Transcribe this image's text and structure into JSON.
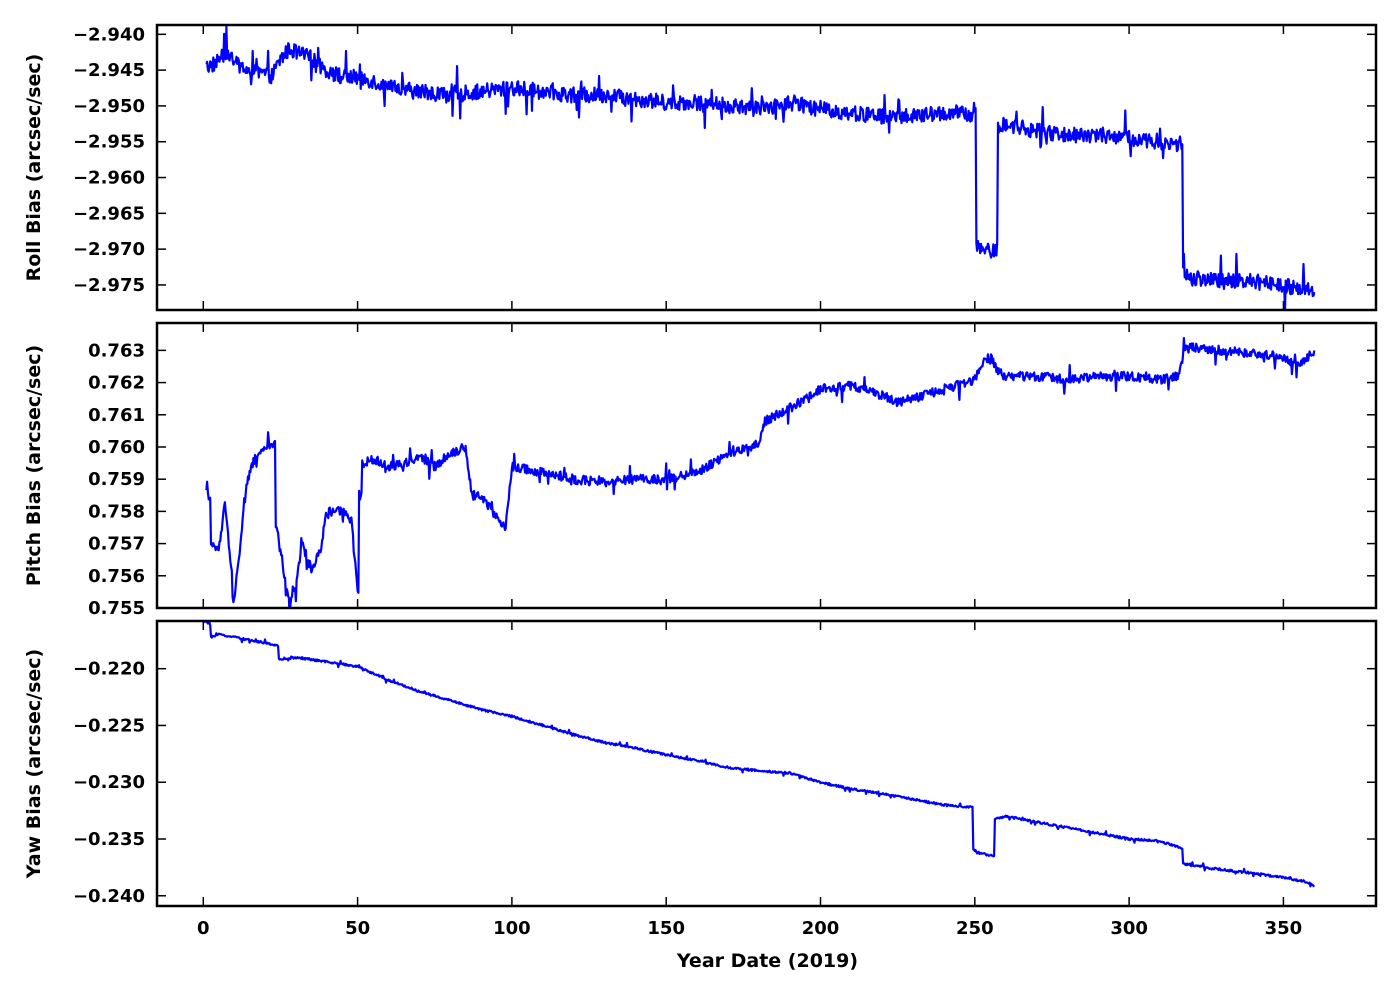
{
  "colors": {
    "series": "#0000ff",
    "frame": "#000000",
    "background": "#ffffff"
  },
  "chart_data": [
    {
      "type": "line",
      "id": "roll",
      "ylabel": "Roll Bias (arcsec/sec)",
      "xlim": [
        -15,
        380
      ],
      "ylim": [
        -2.9785,
        -2.9387
      ],
      "yticks": [
        -2.94,
        -2.945,
        -2.95,
        -2.955,
        -2.96,
        -2.965,
        -2.97,
        -2.975
      ],
      "ytick_labels": [
        "−2.940",
        "−2.945",
        "−2.950",
        "−2.955",
        "−2.960",
        "−2.965",
        "−2.970",
        "−2.975"
      ],
      "xticks": [
        0,
        50,
        100,
        150,
        200,
        250,
        300,
        350
      ],
      "show_xtick_labels": false,
      "grid": false,
      "series": [
        {
          "x": [
            1,
            2,
            4,
            6,
            8,
            10,
            12,
            15,
            18,
            20,
            22,
            25,
            28,
            30,
            33,
            36,
            40,
            45,
            50,
            55,
            60,
            70,
            80,
            90,
            100,
            110,
            120,
            130,
            140,
            150,
            160,
            170,
            180,
            190,
            200,
            210,
            220,
            230,
            240,
            245,
            249,
            250,
            251,
            253,
            255,
            257,
            258,
            260,
            270,
            280,
            290,
            300,
            310,
            316,
            317,
            318,
            320,
            330,
            340,
            350,
            355,
            359,
            360
          ],
          "y": [
            -2.9435,
            -2.9445,
            -2.944,
            -2.943,
            -2.9425,
            -2.944,
            -2.9445,
            -2.945,
            -2.9455,
            -2.9455,
            -2.946,
            -2.9435,
            -2.942,
            -2.9425,
            -2.943,
            -2.9435,
            -2.945,
            -2.946,
            -2.946,
            -2.9465,
            -2.9475,
            -2.948,
            -2.9485,
            -2.948,
            -2.9475,
            -2.948,
            -2.9485,
            -2.9485,
            -2.949,
            -2.9495,
            -2.9495,
            -2.95,
            -2.9505,
            -2.9495,
            -2.9505,
            -2.951,
            -2.9515,
            -2.9515,
            -2.951,
            -2.951,
            -2.9515,
            -2.9505,
            -2.9695,
            -2.97,
            -2.9705,
            -2.97,
            -2.953,
            -2.9525,
            -2.9535,
            -2.954,
            -2.954,
            -2.9545,
            -2.955,
            -2.9555,
            -2.955,
            -2.9735,
            -2.974,
            -2.9745,
            -2.9745,
            -2.975,
            -2.9755,
            -2.9755,
            -2.976
          ],
          "noise": 0.0022
        }
      ]
    },
    {
      "type": "line",
      "id": "pitch",
      "ylabel": "Pitch Bias (arcsec/sec)",
      "xlim": [
        -15,
        380
      ],
      "ylim": [
        0.755,
        0.76385
      ],
      "yticks": [
        0.755,
        0.756,
        0.757,
        0.758,
        0.759,
        0.76,
        0.761,
        0.762,
        0.763
      ],
      "ytick_labels": [
        "0.755",
        "0.756",
        "0.757",
        "0.758",
        "0.759",
        "0.760",
        "0.761",
        "0.762",
        "0.763"
      ],
      "xticks": [
        0,
        50,
        100,
        150,
        200,
        250,
        300,
        350
      ],
      "show_xtick_labels": false,
      "grid": false,
      "series": [
        {
          "x": [
            1,
            2,
            3,
            5,
            7,
            9,
            10,
            12,
            14,
            16,
            18,
            20,
            23,
            24,
            26,
            28,
            30,
            32,
            35,
            38,
            40,
            45,
            48,
            50,
            51,
            52,
            55,
            60,
            65,
            70,
            75,
            80,
            85,
            87,
            90,
            95,
            98,
            100,
            105,
            110,
            120,
            130,
            140,
            150,
            160,
            170,
            180,
            182,
            190,
            200,
            210,
            220,
            225,
            230,
            240,
            248,
            250,
            252,
            255,
            258,
            260,
            270,
            280,
            290,
            300,
            310,
            316,
            318,
            320,
            330,
            340,
            350,
            355,
            360
          ],
          "y": [
            0.7588,
            0.7585,
            0.7569,
            0.7568,
            0.7582,
            0.7563,
            0.7552,
            0.757,
            0.7588,
            0.7595,
            0.7598,
            0.76,
            0.7601,
            0.7575,
            0.7562,
            0.7551,
            0.7557,
            0.757,
            0.7562,
            0.7568,
            0.758,
            0.758,
            0.7577,
            0.7555,
            0.7585,
            0.7595,
            0.7596,
            0.7594,
            0.7595,
            0.7597,
            0.7594,
            0.7598,
            0.76,
            0.7585,
            0.7585,
            0.7578,
            0.7575,
            0.7594,
            0.7593,
            0.7592,
            0.759,
            0.7589,
            0.759,
            0.759,
            0.7592,
            0.7598,
            0.7601,
            0.7608,
            0.7612,
            0.7618,
            0.7619,
            0.7616,
            0.7614,
            0.7615,
            0.7618,
            0.762,
            0.7621,
            0.7626,
            0.7628,
            0.7623,
            0.7622,
            0.7622,
            0.7621,
            0.7622,
            0.7622,
            0.7621,
            0.7622,
            0.763,
            0.7631,
            0.763,
            0.7629,
            0.7628,
            0.7625,
            0.763
          ],
          "noise": 0.00028
        }
      ]
    },
    {
      "type": "line",
      "id": "yaw",
      "ylabel": "Yaw Bias (arcsec/sec)",
      "xlabel": "Year Date (2019)",
      "xlim": [
        -15,
        380
      ],
      "ylim": [
        -0.2409,
        -0.2158
      ],
      "yticks": [
        -0.22,
        -0.225,
        -0.23,
        -0.235,
        -0.24
      ],
      "ytick_labels": [
        "−0.220",
        "−0.225",
        "−0.230",
        "−0.235",
        "−0.240"
      ],
      "xticks": [
        0,
        50,
        100,
        150,
        200,
        250,
        300,
        350
      ],
      "xtick_labels": [
        "0",
        "50",
        "100",
        "150",
        "200",
        "250",
        "300",
        "350"
      ],
      "show_xtick_labels": true,
      "grid": false,
      "series": [
        {
          "x": [
            0,
            2,
            3,
            5,
            10,
            15,
            20,
            24,
            25,
            30,
            35,
            40,
            50,
            60,
            70,
            80,
            90,
            100,
            110,
            120,
            130,
            140,
            150,
            160,
            170,
            180,
            190,
            200,
            210,
            220,
            230,
            240,
            249,
            250,
            251,
            256,
            257,
            260,
            270,
            280,
            290,
            300,
            310,
            317,
            318,
            320,
            330,
            340,
            350,
            358,
            360
          ],
          "y": [
            -0.2158,
            -0.216,
            -0.2172,
            -0.217,
            -0.2172,
            -0.2175,
            -0.2177,
            -0.218,
            -0.2192,
            -0.219,
            -0.2192,
            -0.2194,
            -0.2198,
            -0.221,
            -0.222,
            -0.2228,
            -0.2236,
            -0.2242,
            -0.225,
            -0.2258,
            -0.2265,
            -0.227,
            -0.2276,
            -0.2281,
            -0.2287,
            -0.229,
            -0.2292,
            -0.23,
            -0.2306,
            -0.231,
            -0.2315,
            -0.232,
            -0.2322,
            -0.236,
            -0.2362,
            -0.2365,
            -0.2332,
            -0.233,
            -0.2335,
            -0.234,
            -0.2345,
            -0.235,
            -0.2352,
            -0.2358,
            -0.2372,
            -0.2373,
            -0.2377,
            -0.238,
            -0.2384,
            -0.2388,
            -0.2392
          ],
          "noise": 0.00018
        }
      ]
    }
  ]
}
